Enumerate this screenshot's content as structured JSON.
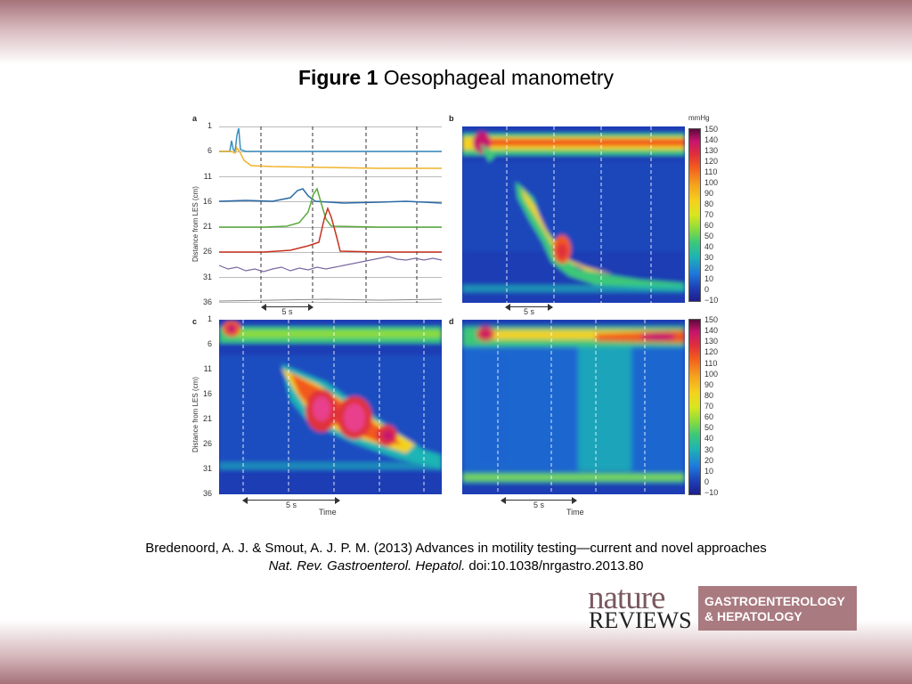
{
  "title": {
    "bold": "Figure 1",
    "rest": "Oesophageal manometry"
  },
  "panels": {
    "a": {
      "label": "a"
    },
    "b": {
      "label": "b"
    },
    "c": {
      "label": "c"
    },
    "d": {
      "label": "d"
    }
  },
  "y_axis_label": "Distance from LES (cm)",
  "y_ticks": [
    "1",
    "6",
    "11",
    "16",
    "21",
    "26",
    "31",
    "36"
  ],
  "scale_bar": "5 s",
  "x_axis_label": "Time",
  "colorbar": {
    "unit": "mmHg",
    "ticks": [
      "150",
      "140",
      "130",
      "120",
      "110",
      "100",
      "90",
      "80",
      "70",
      "60",
      "50",
      "40",
      "30",
      "20",
      "10",
      "0",
      "−10"
    ]
  },
  "colors": {
    "background_top": "#a5727a",
    "plot_blue": "#1e3cb4",
    "logo_box": "#a97a80"
  },
  "citation": {
    "line1": "Bredenoord, A. J. & Smout, A. J. P. M. (2013) Advances in motility testing—current and novel approaches",
    "journal": "Nat. Rev. Gastroenterol. Hepatol.",
    "doi": "doi:10.1038/nrgastro.2013.80"
  },
  "logo": {
    "nature": "nature",
    "reviews": "REVIEWS",
    "line1": "GASTROENTEROLOGY",
    "line2": "& HEPATOLOGY"
  }
}
